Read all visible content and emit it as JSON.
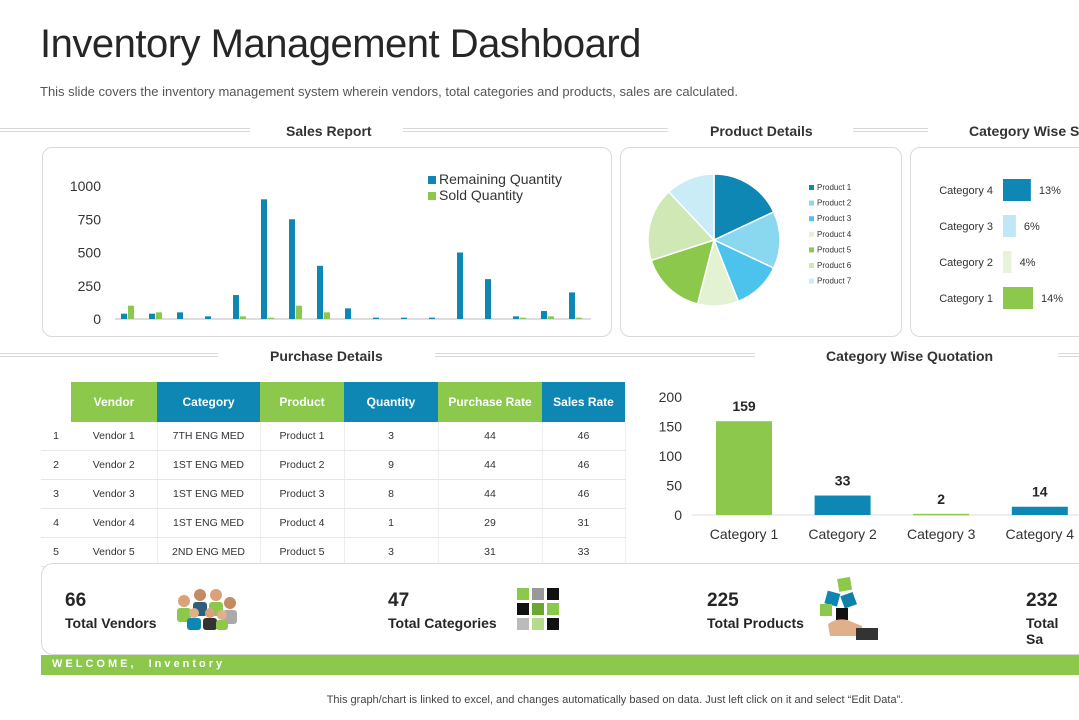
{
  "title": "Inventory Management Dashboard",
  "subtitle": "This slide covers the inventory management system wherein vendors, total categories and products, sales are calculated.",
  "sections": {
    "sales_report": "Sales Report",
    "product_details": "Product Details",
    "category_wise_sales": "Category Wise Sa",
    "purchase_details": "Purchase Details",
    "category_wise_quotation": "Category Wise Quotation"
  },
  "colors": {
    "blue": "#0f87b5",
    "green": "#8cc84b",
    "dark_blue": "#127fa8"
  },
  "chart_data": [
    {
      "id": "sales_report",
      "type": "bar",
      "title": "",
      "ylim": [
        0,
        1000
      ],
      "yticks": [
        1000,
        750,
        500,
        250,
        0
      ],
      "series": [
        {
          "name": "Remaining Quantity",
          "values": [
            40,
            40,
            50,
            20,
            180,
            900,
            750,
            400,
            80,
            10,
            10,
            10,
            500,
            300,
            20,
            60,
            200
          ]
        },
        {
          "name": "Sold Quantity",
          "values": [
            100,
            50,
            0,
            0,
            20,
            10,
            100,
            50,
            0,
            0,
            0,
            0,
            0,
            0,
            10,
            20,
            10
          ]
        }
      ]
    },
    {
      "id": "product_details",
      "type": "pie",
      "categories": [
        "Product 1",
        "Product 2",
        "Product 3",
        "Product 4",
        "Product 5",
        "Product 6",
        "Product 7"
      ],
      "values": [
        18,
        14,
        12,
        10,
        16,
        18,
        12
      ],
      "colors": [
        "#0f87b5",
        "#89d8f0",
        "#4cc3ec",
        "#e4f2d4",
        "#8cc84b",
        "#cfe8b5",
        "#c9ecf7"
      ]
    },
    {
      "id": "category_wise_sales",
      "type": "bar",
      "categories": [
        "Category 4",
        "Category 3",
        "Category 2",
        "Category 1"
      ],
      "values": [
        13,
        6,
        4,
        14
      ],
      "labels": [
        "13%",
        "6%",
        "4%",
        "14%"
      ],
      "colors": [
        "#0f87b5",
        "#bfe7f6",
        "#e8f3dc",
        "#8cc84b"
      ]
    },
    {
      "id": "category_wise_quotation",
      "type": "bar",
      "categories": [
        "Category 1",
        "Category 2",
        "Category 3",
        "Category 4"
      ],
      "values": [
        159,
        33,
        2,
        14
      ],
      "ylim": [
        0,
        200
      ],
      "yticks": [
        200,
        150,
        100,
        50,
        0
      ],
      "colors": [
        "#8cc84b",
        "#0f87b5",
        "#8cc84b",
        "#0f87b5"
      ]
    }
  ],
  "purchase_table": {
    "headers": [
      "Vendor",
      "Category",
      "Product",
      "Quantity",
      "Purchase Rate",
      "Sales Rate"
    ],
    "header_colors": [
      "#8cc84b",
      "#0f87b5",
      "#8cc84b",
      "#0f87b5",
      "#8cc84b",
      "#0f87b5"
    ],
    "rows": [
      [
        "1",
        "Vendor 1",
        "7TH ENG MED",
        "Product 1",
        "3",
        "44",
        "46"
      ],
      [
        "2",
        "Vendor 2",
        "1ST ENG MED",
        "Product 2",
        "9",
        "44",
        "46"
      ],
      [
        "3",
        "Vendor 3",
        "1ST ENG MED",
        "Product 3",
        "8",
        "44",
        "46"
      ],
      [
        "4",
        "Vendor 4",
        "1ST ENG MED",
        "Product 4",
        "1",
        "29",
        "31"
      ],
      [
        "5",
        "Vendor 5",
        "2ND ENG MED",
        "Product 5",
        "3",
        "31",
        "33"
      ]
    ]
  },
  "stats": [
    {
      "value": "66",
      "label": "Total Vendors",
      "icon": "people-group-icon"
    },
    {
      "value": "47",
      "label": "Total Categories",
      "icon": "grid-squares-icon"
    },
    {
      "value": "225",
      "label": "Total Products",
      "icon": "hand-dice-icon"
    },
    {
      "value": "232",
      "label": "Total Sa"
    }
  ],
  "welcome_bar": "WELCOME,  Inventory",
  "footer": "This graph/chart is linked to excel, and changes automatically based on data. Just left click on it and select “Edit Data”."
}
